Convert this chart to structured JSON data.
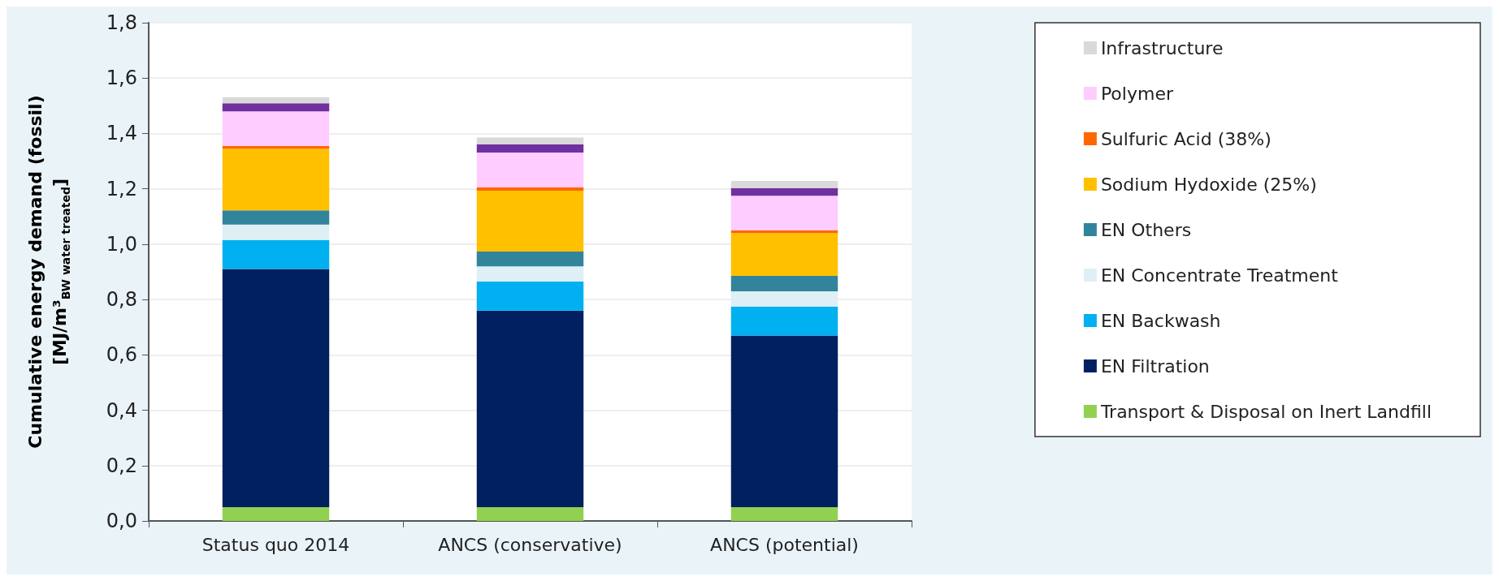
{
  "chart_data": {
    "type": "bar",
    "stacked": true,
    "ylabel": "Cumulative energy demand (fossil)\n[MJ/m³$_{BW water treated}$]",
    "categories": [
      "Status quo 2014",
      "ANCS (conservative)",
      "ANCS (potential)"
    ],
    "ylim": [
      0,
      1.8
    ],
    "yticks": [
      {
        "value": 0,
        "label": "0,0"
      },
      {
        "value": 0.2,
        "label": "0,2"
      },
      {
        "value": 0.4,
        "label": "0,4"
      },
      {
        "value": 0.6,
        "label": "0,6"
      },
      {
        "value": 0.8,
        "label": "0,8"
      },
      {
        "value": 1,
        "label": "1,0"
      },
      {
        "value": 1.2,
        "label": "1,2"
      },
      {
        "value": 1.4,
        "label": "1,4"
      },
      {
        "value": 1.6,
        "label": "1,6"
      },
      {
        "value": 1.8,
        "label": "1,8"
      }
    ],
    "grid": "y",
    "legend": "right",
    "series": [
      {
        "name": "Transport & Disposal on Inert Landfill",
        "color": "#92d050",
        "values": [
          0.05,
          0.05,
          0.05
        ]
      },
      {
        "name": "EN Filtration",
        "color": "#002060",
        "values": [
          0.86,
          0.71,
          0.62
        ]
      },
      {
        "name": "EN Backwash",
        "color": "#00b0f0",
        "values": [
          0.105,
          0.105,
          0.105
        ]
      },
      {
        "name": "EN Concentrate Treatment",
        "color": "#deeff5",
        "values": [
          0.056,
          0.055,
          0.055
        ]
      },
      {
        "name": "EN Others",
        "color": "#31849b",
        "values": [
          0.051,
          0.053,
          0.055
        ]
      },
      {
        "name": "Sodium Hydoxide (25%)",
        "color": "#ffc000",
        "values": [
          0.223,
          0.22,
          0.155
        ]
      },
      {
        "name": "Sulfuric Acid (38%)",
        "color": "#ff6600",
        "values": [
          0.01,
          0.012,
          0.01
        ]
      },
      {
        "name": "Polymer",
        "color": "#ffccff",
        "values": [
          0.125,
          0.126,
          0.125
        ]
      },
      {
        "color": "#7030a0",
        "values": [
          0.029,
          0.029,
          0.028
        ]
      },
      {
        "name": "Infrastructure",
        "color": "#d9d9d9",
        "values": [
          0.022,
          0.025,
          0.025
        ]
      }
    ]
  }
}
